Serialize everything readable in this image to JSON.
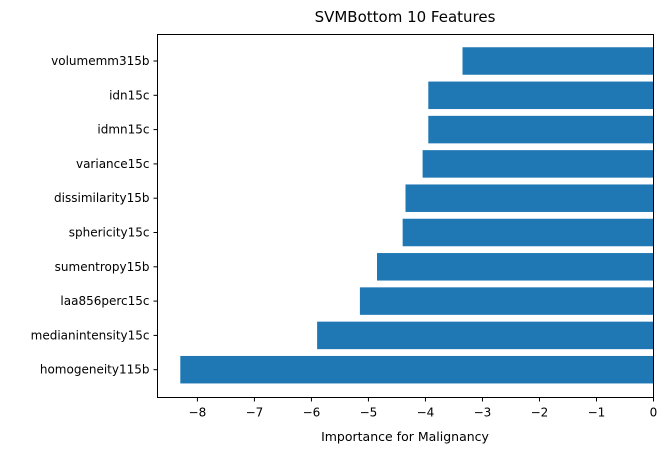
{
  "chart_data": {
    "type": "bar",
    "orientation": "horizontal",
    "title": "SVMBottom 10 Features",
    "xlabel": "Importance for Malignancy",
    "ylabel": "",
    "xlim": [
      -8.7,
      0
    ],
    "xticks": [
      -8,
      -7,
      -6,
      -5,
      -4,
      -3,
      -2,
      -1,
      0
    ],
    "xtick_labels": [
      "−8",
      "−7",
      "−6",
      "−5",
      "−4",
      "−3",
      "−2",
      "−1",
      "0"
    ],
    "categories": [
      "volumemm315b",
      "idn15c",
      "idmn15c",
      "variance15c",
      "dissimilarity15b",
      "sphericity15c",
      "sumentropy15b",
      "laa856perc15c",
      "medianintensity15c",
      "homogeneity115b"
    ],
    "values": [
      -3.35,
      -3.95,
      -3.95,
      -4.05,
      -4.35,
      -4.4,
      -4.85,
      -5.15,
      -5.9,
      -8.3
    ],
    "bar_color": "#1f77b4",
    "grid": false
  }
}
